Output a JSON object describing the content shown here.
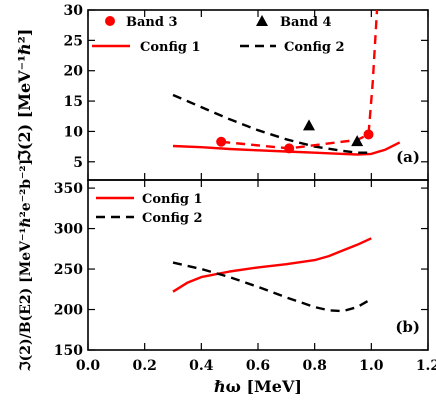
{
  "chart_data": [
    {
      "type": "line",
      "panel_label": "(a)",
      "ylabel": "ℑ(2) [MeV⁻¹ℏ²]",
      "ylim": [
        2,
        30
      ],
      "xlim": [
        0.0,
        1.2
      ],
      "yticks": [
        5,
        10,
        15,
        20,
        25,
        30
      ],
      "ytick_labels": [
        "5",
        "10",
        "15",
        "20",
        "25",
        "30"
      ],
      "legend_position": "top",
      "series": [
        {
          "name": "Band 3",
          "style": "marker-circle",
          "color": "#ff0000",
          "x": [
            0.47,
            0.71,
            0.99
          ],
          "y": [
            8.3,
            7.2,
            9.5
          ]
        },
        {
          "name": "Band 4",
          "style": "marker-triangle",
          "color": "#000000",
          "x": [
            0.78,
            0.95
          ],
          "y": [
            11.0,
            8.4
          ]
        },
        {
          "name": "Config 1",
          "style": "solid",
          "color": "#ff0000",
          "x": [
            0.3,
            0.4,
            0.5,
            0.6,
            0.7,
            0.8,
            0.9,
            0.95,
            1.0,
            1.05,
            1.1
          ],
          "y": [
            7.6,
            7.4,
            7.1,
            6.9,
            6.7,
            6.5,
            6.3,
            6.2,
            6.3,
            7.0,
            8.2
          ]
        },
        {
          "name": "Config 2",
          "style": "dashed",
          "color": "#000000",
          "x": [
            0.3,
            0.4,
            0.5,
            0.6,
            0.7,
            0.8,
            0.9,
            0.95,
            1.0
          ],
          "y": [
            16.0,
            14.0,
            12.0,
            10.2,
            8.7,
            7.5,
            6.8,
            6.5,
            6.5
          ]
        },
        {
          "name": "",
          "style": "dashed",
          "color": "#ff0000",
          "x": [
            0.47,
            0.71,
            0.95,
            0.99,
            1.005,
            1.02
          ],
          "y": [
            8.3,
            7.2,
            8.6,
            9.5,
            18.0,
            30.0
          ]
        }
      ]
    },
    {
      "type": "line",
      "panel_label": "(b)",
      "ylabel": "ℑ(2)/B(E2) [MeV⁻¹ℏ²e⁻²b⁻²]",
      "xlabel": "ℏω [MeV]",
      "ylim": [
        150,
        360
      ],
      "xlim": [
        0.0,
        1.2
      ],
      "xticks": [
        0.0,
        0.2,
        0.4,
        0.6,
        0.8,
        1.0,
        1.2
      ],
      "xtick_labels": [
        "0.0",
        "0.2",
        "0.4",
        "0.6",
        "0.8",
        "1.0",
        "1.2"
      ],
      "yticks": [
        150,
        200,
        250,
        300,
        350
      ],
      "ytick_labels": [
        "150",
        "200",
        "250",
        "300",
        "350"
      ],
      "legend_position": "top-left",
      "series": [
        {
          "name": "Config 1",
          "style": "solid",
          "color": "#ff0000",
          "x": [
            0.3,
            0.35,
            0.4,
            0.5,
            0.6,
            0.7,
            0.8,
            0.85,
            0.9,
            0.95,
            1.0
          ],
          "y": [
            222,
            233,
            240,
            247,
            252,
            256,
            261,
            266,
            273,
            280,
            288
          ]
        },
        {
          "name": "Config 2",
          "style": "dashed",
          "color": "#000000",
          "x": [
            0.3,
            0.4,
            0.5,
            0.6,
            0.7,
            0.8,
            0.85,
            0.9,
            0.95,
            1.0
          ],
          "y": [
            258,
            250,
            240,
            228,
            215,
            203,
            199,
            198,
            203,
            213
          ]
        }
      ]
    }
  ]
}
